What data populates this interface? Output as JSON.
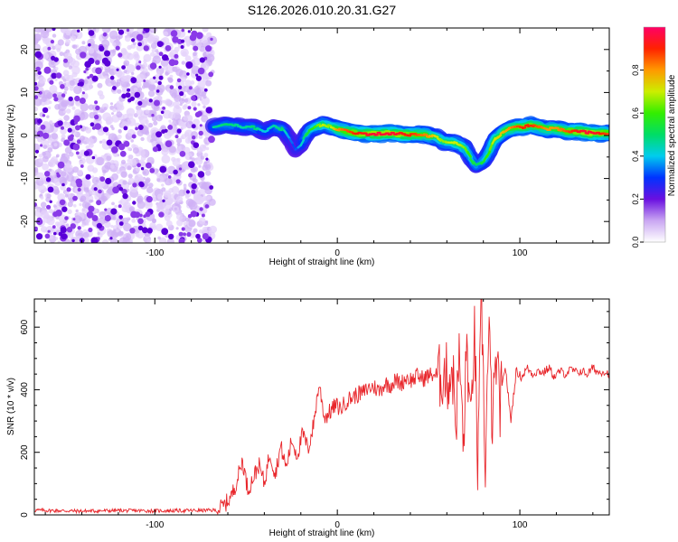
{
  "title": "S126.2026.010.20.31.G27",
  "chart_data": [
    {
      "type": "heatmap",
      "id": "spectrogram",
      "xlabel": "Height of straight line (km)",
      "ylabel": "Frequency (Hz)",
      "xlim": [
        -166,
        149
      ],
      "ylim": [
        -25,
        25
      ],
      "xticks": [
        -100,
        0,
        100
      ],
      "xtick_labels": [
        "-100",
        "0",
        "100"
      ],
      "yticks": [
        -20,
        -10,
        0,
        10,
        20
      ],
      "ytick_labels": [
        "-20",
        "-10",
        "0",
        "10",
        "20"
      ],
      "noise_region_x": [
        -166,
        -68
      ],
      "ridge": {
        "x": [
          -68,
          -60,
          -52,
          -45,
          -40,
          -35,
          -30,
          -26,
          -23,
          -20,
          -16,
          -12,
          -8,
          -4,
          0,
          5,
          10,
          20,
          30,
          40,
          45,
          50,
          55,
          58,
          62,
          66,
          70,
          74,
          76,
          78,
          80,
          83,
          86,
          90,
          94,
          98,
          102,
          106,
          110,
          115,
          120,
          125,
          130,
          135,
          140,
          145,
          149
        ],
        "freq": [
          2,
          2.5,
          2,
          1.8,
          1,
          2,
          1.5,
          -1,
          -3,
          -2,
          1,
          2,
          2.5,
          2,
          1.5,
          1,
          0.5,
          0.3,
          0.5,
          0.2,
          0.3,
          0,
          -0.5,
          -1.5,
          -1.5,
          -2,
          -3,
          -6,
          -7,
          -6.5,
          -6,
          -4,
          -1,
          0.5,
          1.5,
          2,
          2,
          2.5,
          2,
          1.5,
          1.5,
          1,
          1,
          0.8,
          0.5,
          0.5,
          0.5
        ],
        "amplitude": [
          0.45,
          0.5,
          0.45,
          0.5,
          0.4,
          0.45,
          0.5,
          0.35,
          0.3,
          0.4,
          0.55,
          0.6,
          0.7,
          0.65,
          0.8,
          0.85,
          0.9,
          0.95,
          0.95,
          0.9,
          0.85,
          0.8,
          0.7,
          0.65,
          0.7,
          0.7,
          0.65,
          0.55,
          0.5,
          0.5,
          0.55,
          0.6,
          0.7,
          0.75,
          0.8,
          0.85,
          0.9,
          0.9,
          0.85,
          0.8,
          0.8,
          0.85,
          0.9,
          0.95,
          0.95,
          0.9,
          0.85
        ]
      },
      "colorbar": {
        "label": "Normalized spectral amplitude",
        "range": [
          0,
          1
        ],
        "ticks": [
          0.0,
          0.2,
          0.4,
          0.6,
          0.8
        ],
        "tick_labels": [
          "0.0",
          "0.2",
          "0.4",
          "0.6",
          "0.8"
        ]
      }
    },
    {
      "type": "line",
      "id": "snr",
      "xlabel": "Height of straight line (km)",
      "ylabel": "SNR (10 * v/v)",
      "xlim": [
        -166,
        149
      ],
      "ylim": [
        0,
        690
      ],
      "xticks": [
        -100,
        0,
        100
      ],
      "xtick_labels": [
        "-100",
        "0",
        "100"
      ],
      "yticks": [
        0,
        200,
        400,
        600
      ],
      "ytick_labels": [
        "0",
        "200",
        "400",
        "600"
      ],
      "color": "#e8262b",
      "series": [
        {
          "name": "SNR",
          "x": [
            -166,
            -140,
            -120,
            -100,
            -80,
            -66,
            -62,
            -58,
            -55,
            -52,
            -49,
            -46,
            -43,
            -40,
            -37,
            -34,
            -31,
            -28,
            -25,
            -22,
            -19,
            -16,
            -13,
            -10,
            -7,
            -4,
            -1,
            2,
            5,
            8,
            11,
            14,
            17,
            20,
            23,
            26,
            29,
            32,
            35,
            38,
            41,
            44,
            47,
            50,
            53,
            56,
            59,
            61,
            63,
            65,
            67,
            69,
            71,
            73,
            75,
            77,
            79,
            81,
            83,
            85,
            87,
            89,
            92,
            95,
            98,
            101,
            104,
            107,
            110,
            113,
            116,
            119,
            122,
            125,
            128,
            131,
            134,
            137,
            140,
            143,
            146,
            149
          ],
          "y": [
            15,
            12,
            14,
            13,
            14,
            15,
            30,
            60,
            110,
            175,
            80,
            120,
            160,
            100,
            200,
            130,
            220,
            150,
            240,
            190,
            260,
            210,
            290,
            420,
            310,
            330,
            350,
            340,
            365,
            375,
            385,
            390,
            405,
            410,
            395,
            420,
            415,
            430,
            420,
            440,
            430,
            445,
            435,
            445,
            450,
            440,
            455,
            430,
            470,
            300,
            520,
            200,
            560,
            250,
            610,
            130,
            690,
            150,
            580,
            280,
            500,
            350,
            480,
            300,
            460,
            440,
            470,
            450,
            460,
            455,
            470,
            440,
            460,
            450,
            465,
            455,
            460,
            450,
            470,
            455,
            460,
            450
          ]
        }
      ]
    }
  ]
}
